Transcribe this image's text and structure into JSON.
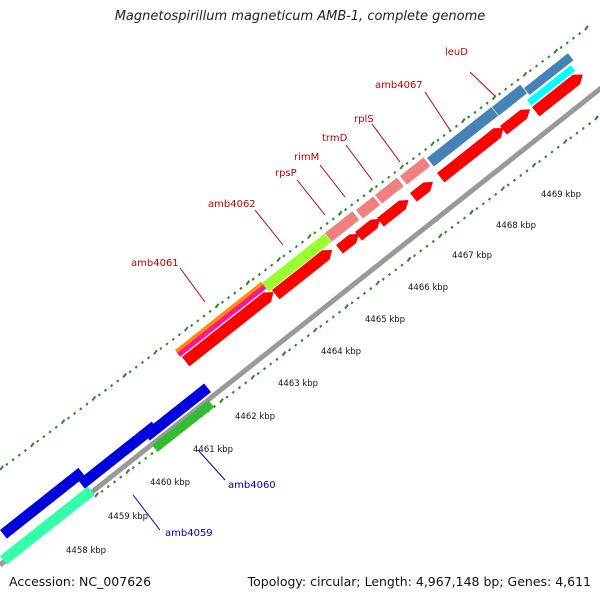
{
  "title": "Magnetospirillum magneticum AMB-1, complete genome",
  "footer": {
    "accession": "Accession: NC_007626",
    "summary": "Topology: circular; Length: 4,967,148 bp; Genes: 4,611"
  },
  "scale_labels": [
    "4458 kbp",
    "4459 kbp",
    "4460 kbp",
    "4461 kbp",
    "4462 kbp",
    "4463 kbp",
    "4464 kbp",
    "4465 kbp",
    "4466 kbp",
    "4467 kbp",
    "4468 kbp",
    "4469 kbp"
  ],
  "gene_labels": [
    "leuD",
    "amb4067",
    "rplS",
    "trmD",
    "rimM",
    "rpsP",
    "amb4062",
    "amb4061",
    "amb4060",
    "amb4059"
  ],
  "colors": {
    "cds": "#ff0000",
    "backbone": "#999999",
    "gc_dots": "#228b22",
    "blue_genes": "#0000dd",
    "green_gene": "#33bb33",
    "teal_gene": "#33ffaa",
    "steel_genes": "#4682b4",
    "cyan_gene": "#00ffff",
    "pink_genes": "#f08080",
    "lime_gene": "#99ff33",
    "orange_gene": "#ff8c00",
    "magenta_gene": "#ff1493"
  }
}
